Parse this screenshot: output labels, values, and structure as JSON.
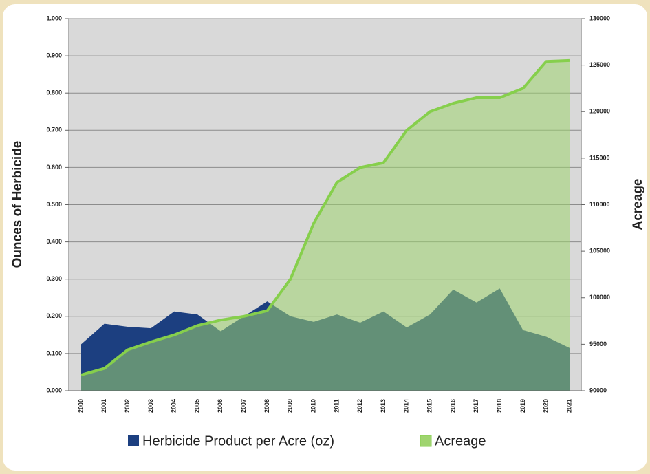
{
  "chart_data": {
    "type": "area",
    "categories": [
      "2000",
      "2001",
      "2002",
      "2003",
      "2004",
      "2005",
      "2006",
      "2007",
      "2008",
      "2009",
      "2010",
      "2011",
      "2012",
      "2013",
      "2014",
      "2015",
      "2016",
      "2017",
      "2018",
      "2019",
      "2020",
      "2021"
    ],
    "ylabel": "Ounces of Herbicide",
    "y2label": "Acreage",
    "ylim": [
      0,
      1
    ],
    "yticks": [
      {
        "value": 0,
        "label": "0.000"
      },
      {
        "value": 0.1,
        "label": "0.100"
      },
      {
        "value": 0.2,
        "label": "0.200"
      },
      {
        "value": 0.3,
        "label": "0.300"
      },
      {
        "value": 0.4,
        "label": "0.400"
      },
      {
        "value": 0.5,
        "label": "0.500"
      },
      {
        "value": 0.6,
        "label": "0.600"
      },
      {
        "value": 0.7,
        "label": "0.700"
      },
      {
        "value": 0.8,
        "label": "0.800"
      },
      {
        "value": 0.9,
        "label": "0.900"
      },
      {
        "value": 1,
        "label": "1.000"
      }
    ],
    "y2lim": [
      90000,
      130000
    ],
    "y2ticks": [
      90000,
      95000,
      100000,
      105000,
      110000,
      115000,
      120000,
      125000,
      130000
    ],
    "grid": true,
    "legend": "bottom",
    "series": [
      {
        "name": "Herbicide Product per Acre (oz)",
        "color": "#1c3f80",
        "values": [
          0.125,
          0.18,
          0.172,
          0.168,
          0.213,
          0.205,
          0.16,
          0.2,
          0.24,
          0.2,
          0.185,
          0.205,
          0.183,
          0.213,
          0.17,
          0.205,
          0.272,
          0.237,
          0.275,
          0.163,
          0.145,
          0.115
        ]
      },
      {
        "name": "Acreage",
        "color": "#9fd46f",
        "axis": "y2",
        "values": [
          91700,
          92400,
          94400,
          95250,
          96000,
          97000,
          97600,
          98000,
          98600,
          102000,
          108000,
          112400,
          114000,
          114500,
          118000,
          120000,
          120900,
          121500,
          121500,
          122500,
          125400,
          125500
        ]
      }
    ]
  }
}
